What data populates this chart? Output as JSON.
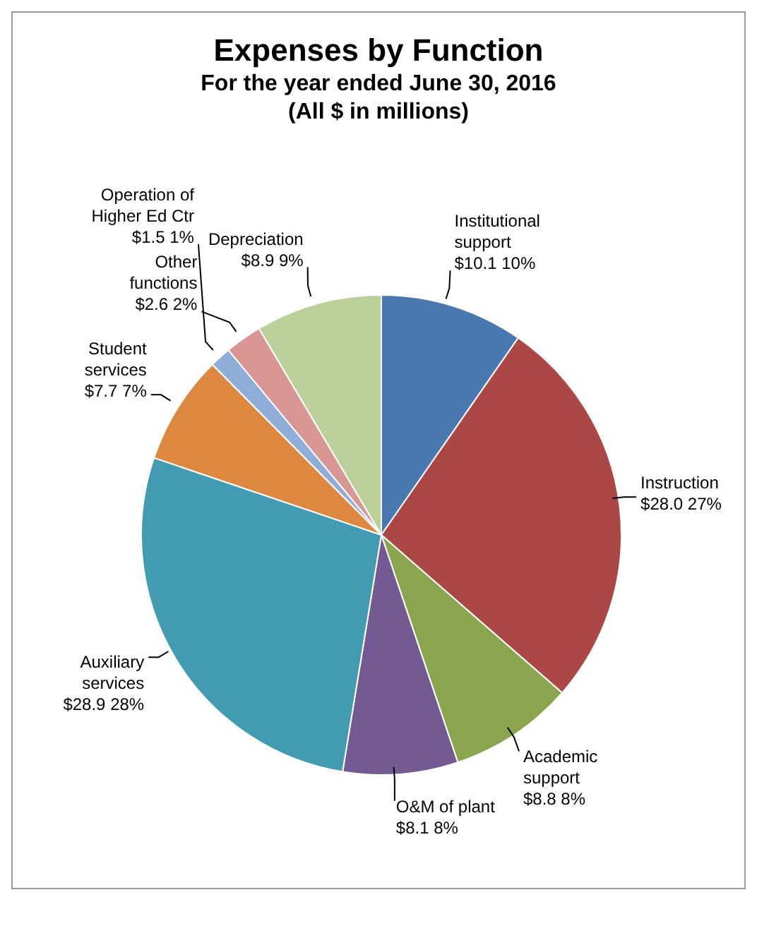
{
  "chart_data": {
    "type": "pie",
    "title": "Expenses by Function",
    "subtitle": "For the year ended June 30, 2016\n(All $ in millions)",
    "categories": [
      "Institutional support",
      "Instruction",
      "Academic support",
      "O&M of plant",
      "Auxiliary services",
      "Student services",
      "Operation of Higher Ed Ctr",
      "Other functions",
      "Depreciation"
    ],
    "values": [
      10.1,
      28.0,
      8.8,
      8.1,
      28.9,
      7.7,
      1.5,
      2.6,
      8.9
    ],
    "value_labels": [
      "$10.1 10%",
      "$28.0 27%",
      "$8.8 8%",
      "$8.1 8%",
      "$28.9 28%",
      "$7.7 7%",
      "$1.5 1%",
      "$2.6 2%",
      "$8.9 9%"
    ],
    "colors": [
      "#4a78b0",
      "#ab4744",
      "#8ba54f",
      "#735a92",
      "#439bb2",
      "#dd8840",
      "#8eaed8",
      "#d99694",
      "#bcd19a"
    ]
  }
}
